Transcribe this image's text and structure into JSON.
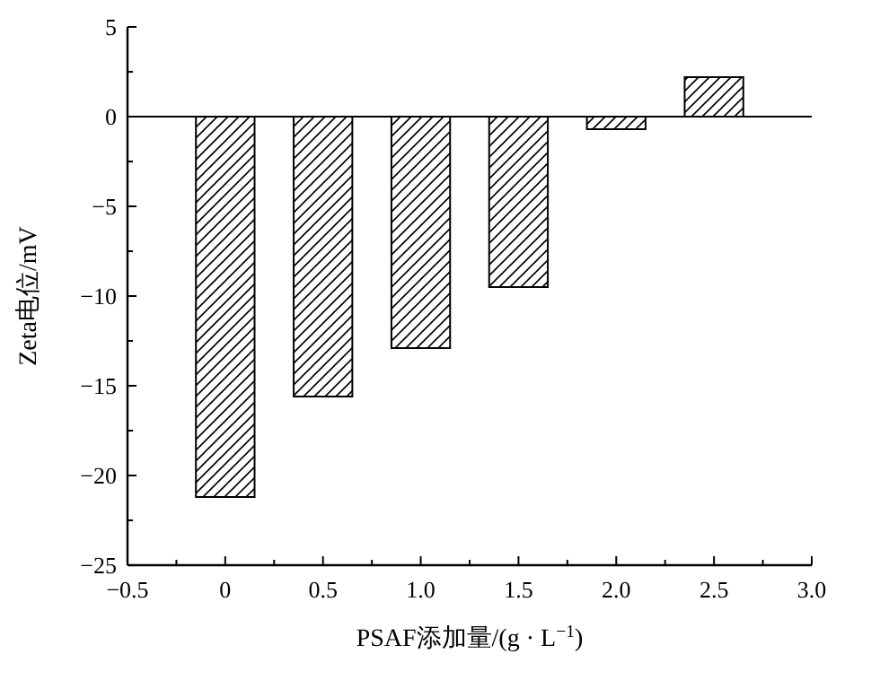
{
  "chart_data": {
    "type": "bar",
    "xlabel": "PSAF添加量/(g · L$^{−1}$)",
    "ylabel": "Zeta电位/mV",
    "x": [
      0,
      0.5,
      1.0,
      1.5,
      2.0,
      2.5
    ],
    "values": [
      -21.2,
      -15.6,
      -12.9,
      -9.5,
      -0.7,
      2.2
    ],
    "color": "#000000",
    "xlim": [
      -0.5,
      3.0
    ],
    "xticks": [
      {
        "value": -0.5,
        "label": "−0.5"
      },
      0,
      0.5,
      {
        "value": 1.0,
        "label": "1.0"
      },
      1.5,
      {
        "value": 2.0,
        "label": "2.0"
      },
      2.5,
      {
        "value": 3.0,
        "label": "3.0"
      }
    ],
    "ylim": [
      -25,
      5
    ],
    "yticks": [
      {
        "value": -25,
        "label": "−25"
      },
      {
        "value": -20,
        "label": "−20"
      },
      {
        "value": -15,
        "label": "−15"
      },
      {
        "value": -10,
        "label": "−10"
      },
      {
        "value": -5,
        "label": "−5"
      },
      0,
      5
    ],
    "ref_lines": [
      {
        "axis": "y",
        "value": 0,
        "color": "#000000"
      }
    ]
  }
}
